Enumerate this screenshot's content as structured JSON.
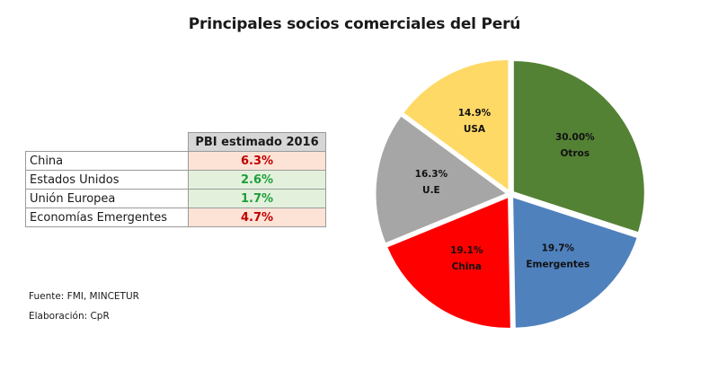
{
  "title": "Principales socios comerciales del Perú",
  "table": {
    "header": "PBI estimado 2016",
    "rows": [
      {
        "name": "China",
        "value": "6.3%",
        "color": "#c00000",
        "bg": "#fde3d6"
      },
      {
        "name": "Estados Unidos",
        "value": "2.6%",
        "color": "#1e9e3a",
        "bg": "#e3f1dc"
      },
      {
        "name": "Unión Europea",
        "value": "1.7%",
        "color": "#1e9e3a",
        "bg": "#e3f1dc"
      },
      {
        "name": "Economías Emergentes",
        "value": "4.7%",
        "color": "#c00000",
        "bg": "#fde3d6"
      }
    ]
  },
  "source": "Fuente: FMI, MINCETUR",
  "credit": "Elaboración: CpR",
  "chart_data": {
    "type": "pie",
    "title": "",
    "slices": [
      {
        "label": "Otros",
        "value": 30.0,
        "value_text": "30.00%",
        "color": "#548235"
      },
      {
        "label": "Emergentes",
        "value": 19.7,
        "value_text": "19.7%",
        "color": "#4f81bd"
      },
      {
        "label": "China",
        "value": 19.1,
        "value_text": "19.1%",
        "color": "#ff0000"
      },
      {
        "label": "U.E",
        "value": 16.3,
        "value_text": "16.3%",
        "color": "#a6a6a6"
      },
      {
        "label": "USA",
        "value": 14.9,
        "value_text": "14.9%",
        "color": "#ffd966"
      }
    ]
  }
}
